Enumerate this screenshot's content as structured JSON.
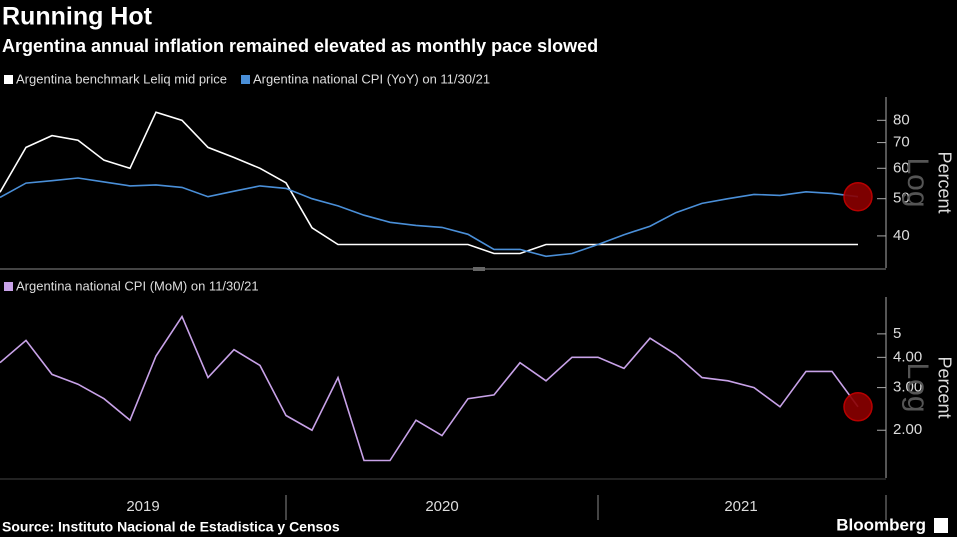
{
  "title": "Running Hot",
  "subtitle": "Argentina annual inflation remained elevated as monthly pace slowed",
  "source": "Source: Instituto Nacional de Estadistica y Censos",
  "brand": "Bloomberg",
  "chart_data": [
    {
      "type": "line",
      "log": true,
      "y_label": "Percent",
      "scale_label": "Log",
      "x": [
        "2019-02",
        "2019-03",
        "2019-04",
        "2019-05",
        "2019-06",
        "2019-07",
        "2019-08",
        "2019-09",
        "2019-10",
        "2019-11",
        "2019-12",
        "2020-01",
        "2020-02",
        "2020-03",
        "2020-04",
        "2020-05",
        "2020-06",
        "2020-07",
        "2020-08",
        "2020-09",
        "2020-10",
        "2020-11",
        "2020-12",
        "2021-01",
        "2021-02",
        "2021-03",
        "2021-04",
        "2021-05",
        "2021-06",
        "2021-07",
        "2021-08",
        "2021-09",
        "2021-10",
        "2021-11"
      ],
      "xlim": [
        "2019-02",
        "2021-12"
      ],
      "ylim": [
        33,
        92
      ],
      "yticks": [
        40,
        50,
        60,
        70,
        80
      ],
      "series": [
        {
          "name": "Argentina benchmark Leliq mid price",
          "color": "#ffffff",
          "values": [
            52,
            68,
            73,
            71,
            63,
            60,
            84,
            80,
            68,
            64,
            60,
            55,
            42,
            38,
            38,
            38,
            38,
            38,
            38,
            36,
            36,
            38,
            38,
            38,
            38,
            38,
            38,
            38,
            38,
            38,
            38,
            38,
            38,
            38
          ]
        },
        {
          "name": "Argentina national CPI (YoY) on 11/30/21",
          "color": "#4a8fd8",
          "values": [
            50.4,
            54.9,
            55.7,
            56.6,
            55.3,
            54.0,
            54.3,
            53.5,
            50.6,
            52.3,
            54.0,
            53.2,
            50.0,
            47.9,
            45.3,
            43.4,
            42.6,
            42.1,
            40.4,
            36.9,
            36.9,
            35.4,
            36.0,
            38.0,
            40.3,
            42.4,
            46.0,
            48.6,
            50.0,
            51.3,
            51.0,
            52.1,
            51.6,
            50.6
          ]
        }
      ]
    },
    {
      "type": "line",
      "log": true,
      "y_label": "Percent",
      "scale_label": "Log",
      "x": [
        "2019-02",
        "2019-03",
        "2019-04",
        "2019-05",
        "2019-06",
        "2019-07",
        "2019-08",
        "2019-09",
        "2019-10",
        "2019-11",
        "2019-12",
        "2020-01",
        "2020-02",
        "2020-03",
        "2020-04",
        "2020-05",
        "2020-06",
        "2020-07",
        "2020-08",
        "2020-09",
        "2020-10",
        "2020-11",
        "2020-12",
        "2021-01",
        "2021-02",
        "2021-03",
        "2021-04",
        "2021-05",
        "2021-06",
        "2021-07",
        "2021-08",
        "2021-09",
        "2021-10",
        "2021-11"
      ],
      "xlim": [
        "2019-02",
        "2021-12"
      ],
      "xticks": [
        {
          "value": "2019-01",
          "label": "2019"
        },
        {
          "value": "2020-01",
          "label": "2020"
        },
        {
          "value": "2021-01",
          "label": "2021"
        }
      ],
      "ylim": [
        1.27,
        7.1
      ],
      "yticks": [
        {
          "value": 2,
          "label": "2.00"
        },
        {
          "value": 3,
          "label": "3.00"
        },
        {
          "value": 4,
          "label": "4.00"
        },
        5
      ],
      "series": [
        {
          "name": "Argentina national CPI (MoM) on 11/30/21",
          "color": "#c8a2e8",
          "values": [
            3.8,
            4.7,
            3.4,
            3.1,
            2.7,
            2.2,
            4.05,
            5.9,
            3.3,
            4.3,
            3.7,
            2.3,
            2.0,
            3.3,
            1.5,
            1.5,
            2.2,
            1.9,
            2.7,
            2.8,
            3.8,
            3.2,
            4.0,
            4.0,
            3.6,
            4.8,
            4.1,
            3.3,
            3.2,
            3.0,
            2.5,
            3.5,
            3.5,
            2.5
          ]
        }
      ]
    }
  ]
}
